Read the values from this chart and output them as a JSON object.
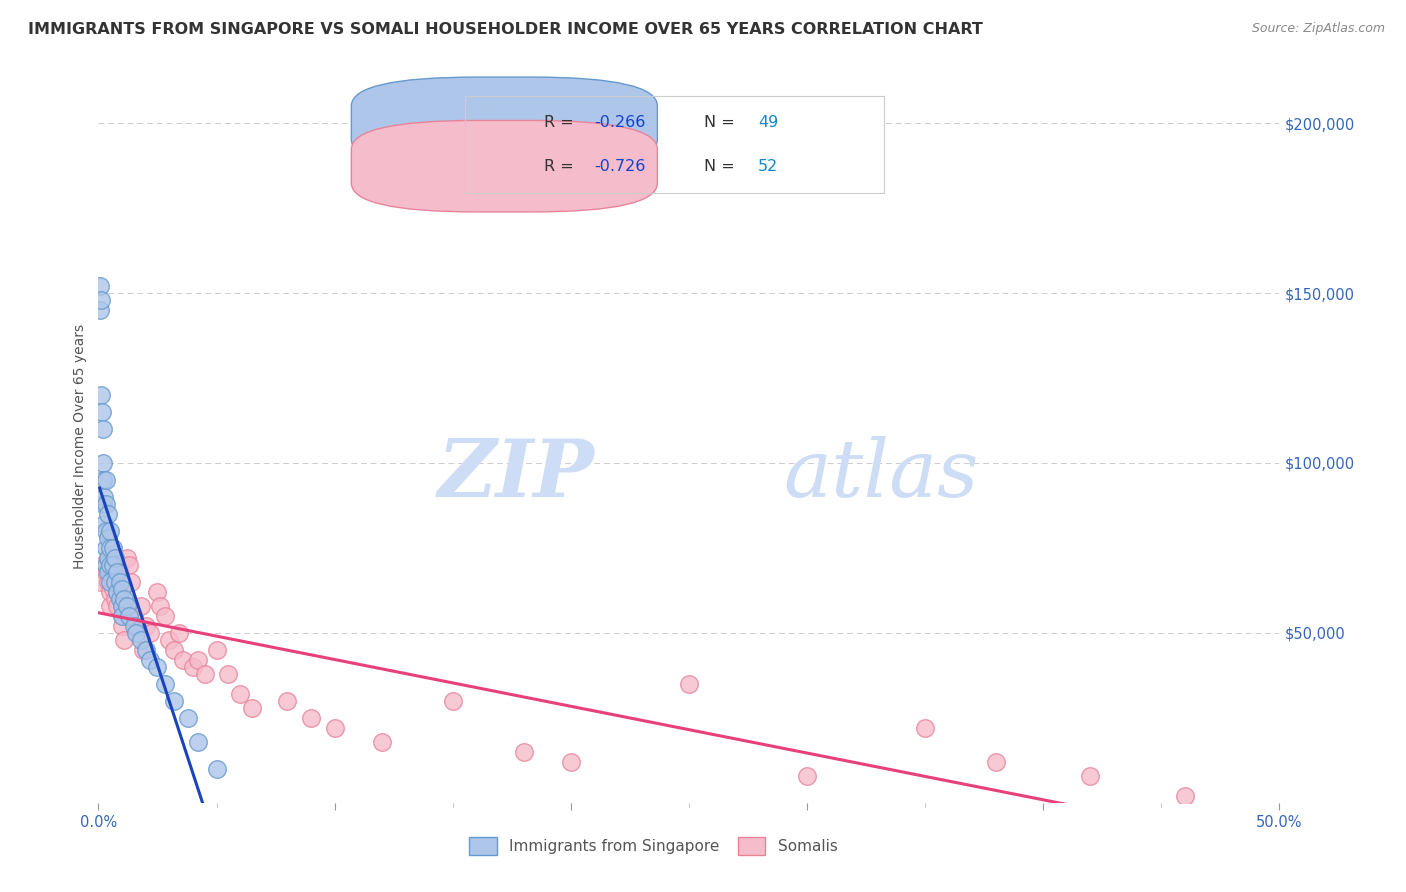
{
  "title": "IMMIGRANTS FROM SINGAPORE VS SOMALI HOUSEHOLDER INCOME OVER 65 YEARS CORRELATION CHART",
  "source": "Source: ZipAtlas.com",
  "ylabel": "Householder Income Over 65 years",
  "watermark_zip": "ZIP",
  "watermark_atlas": "atlas",
  "watermark_color": "#ccddf5",
  "sg_scatter_color_fill": "#adc6ea",
  "sg_scatter_color_edge": "#6699cc",
  "som_scatter_color_fill": "#f5bccb",
  "som_scatter_color_edge": "#e8849a",
  "sg_line_color": "#1a44bb",
  "sg_line_dash_color": "#99aad4",
  "som_line_color": "#e8407a",
  "xlim": [
    0,
    0.5
  ],
  "ylim": [
    0,
    210000
  ],
  "grid_color": "#cccccc",
  "background_color": "#ffffff",
  "title_fontsize": 11.5,
  "axis_label_fontsize": 10,
  "tick_fontsize": 10.5,
  "legend_r_label_color": "#333333",
  "legend_r_value_color": "#1144cc",
  "legend_n_label_color": "#333333",
  "legend_n_value_color": "#1188cc",
  "sg_points_x": [
    0.0005,
    0.0007,
    0.001,
    0.0012,
    0.0015,
    0.0018,
    0.002,
    0.002,
    0.002,
    0.0022,
    0.0025,
    0.003,
    0.003,
    0.003,
    0.003,
    0.003,
    0.004,
    0.004,
    0.004,
    0.004,
    0.005,
    0.005,
    0.005,
    0.005,
    0.006,
    0.006,
    0.007,
    0.007,
    0.008,
    0.008,
    0.009,
    0.009,
    0.01,
    0.01,
    0.01,
    0.011,
    0.012,
    0.013,
    0.015,
    0.016,
    0.018,
    0.02,
    0.022,
    0.025,
    0.028,
    0.032,
    0.038,
    0.042,
    0.05
  ],
  "sg_points_y": [
    145000,
    152000,
    148000,
    120000,
    115000,
    110000,
    100000,
    95000,
    88000,
    82000,
    90000,
    95000,
    88000,
    80000,
    75000,
    70000,
    85000,
    78000,
    72000,
    68000,
    80000,
    75000,
    70000,
    65000,
    75000,
    70000,
    72000,
    65000,
    68000,
    62000,
    65000,
    60000,
    63000,
    58000,
    55000,
    60000,
    58000,
    55000,
    52000,
    50000,
    48000,
    45000,
    42000,
    40000,
    35000,
    30000,
    25000,
    18000,
    10000
  ],
  "som_points_x": [
    0.001,
    0.002,
    0.003,
    0.004,
    0.004,
    0.005,
    0.005,
    0.006,
    0.006,
    0.007,
    0.008,
    0.008,
    0.009,
    0.01,
    0.01,
    0.011,
    0.012,
    0.013,
    0.014,
    0.015,
    0.016,
    0.018,
    0.019,
    0.02,
    0.022,
    0.025,
    0.026,
    0.028,
    0.03,
    0.032,
    0.034,
    0.036,
    0.04,
    0.042,
    0.045,
    0.05,
    0.055,
    0.06,
    0.065,
    0.08,
    0.09,
    0.1,
    0.12,
    0.15,
    0.18,
    0.2,
    0.25,
    0.3,
    0.35,
    0.38,
    0.42,
    0.46
  ],
  "som_points_y": [
    65000,
    70000,
    68000,
    72000,
    65000,
    62000,
    58000,
    65000,
    63000,
    60000,
    62000,
    58000,
    68000,
    55000,
    52000,
    48000,
    72000,
    70000,
    65000,
    55000,
    52000,
    58000,
    45000,
    52000,
    50000,
    62000,
    58000,
    55000,
    48000,
    45000,
    50000,
    42000,
    40000,
    42000,
    38000,
    45000,
    38000,
    32000,
    28000,
    30000,
    25000,
    22000,
    18000,
    30000,
    15000,
    12000,
    35000,
    8000,
    22000,
    12000,
    8000,
    2000
  ]
}
